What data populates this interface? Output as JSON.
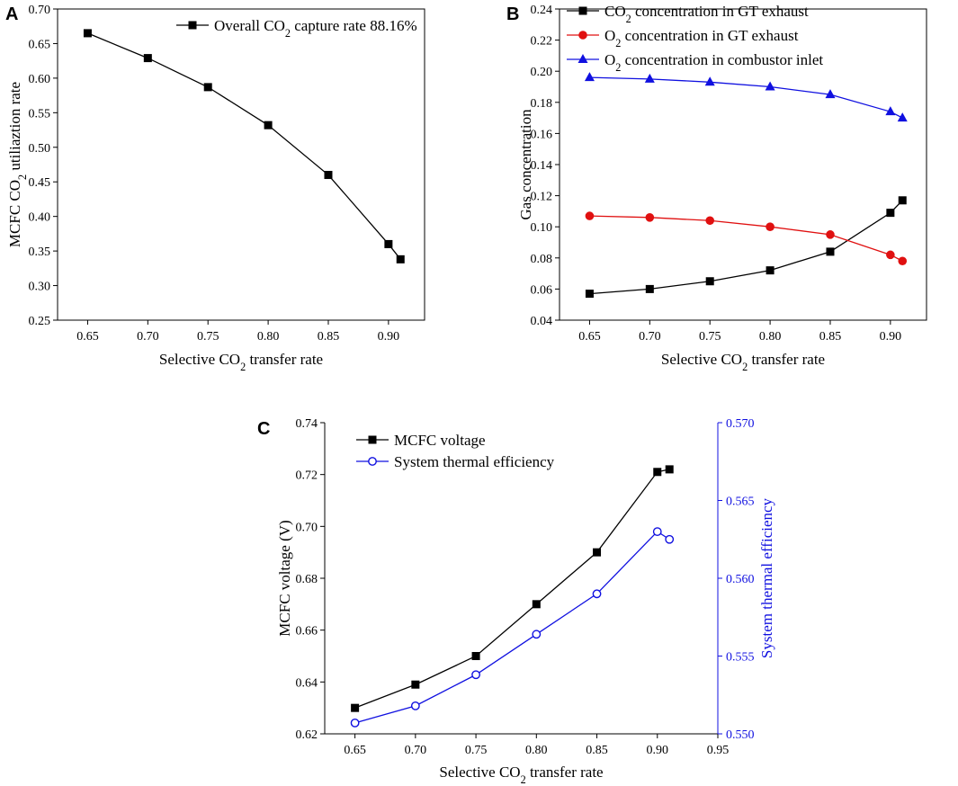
{
  "chart_data": [
    {
      "panel": "A",
      "type": "line",
      "xlabel": "Selective CO₂ transfer rate",
      "ylabel": "MCFC CO₂ utiliaztion rate",
      "xticks": [
        0.65,
        0.7,
        0.75,
        0.8,
        0.85,
        0.9
      ],
      "xtick_labels": [
        "0.65",
        "0.70",
        "0.75",
        "0.80",
        "0.85",
        "0.90"
      ],
      "xlim": [
        0.625,
        0.93
      ],
      "ylim": [
        0.25,
        0.7
      ],
      "yticks": [
        0.25,
        0.3,
        0.35,
        0.4,
        0.45,
        0.5,
        0.55,
        0.6,
        0.65,
        0.7
      ],
      "ytick_labels": [
        "0.25",
        "0.30",
        "0.35",
        "0.40",
        "0.45",
        "0.50",
        "0.55",
        "0.60",
        "0.65",
        "0.70"
      ],
      "legend_position": "top-right",
      "series": [
        {
          "name": "Overall CO₂ capture rate 88.16%",
          "color": "#000000",
          "marker": "square",
          "x": [
            0.65,
            0.7,
            0.75,
            0.8,
            0.85,
            0.9,
            0.91
          ],
          "y": [
            0.665,
            0.629,
            0.587,
            0.532,
            0.46,
            0.36,
            0.338
          ]
        }
      ]
    },
    {
      "panel": "B",
      "type": "line",
      "xlabel": "Selective CO₂ transfer rate",
      "ylabel": "Gas concentration",
      "xticks": [
        0.65,
        0.7,
        0.75,
        0.8,
        0.85,
        0.9
      ],
      "xtick_labels": [
        "0.65",
        "0.70",
        "0.75",
        "0.80",
        "0.85",
        "0.90"
      ],
      "xlim": [
        0.625,
        0.93
      ],
      "ylim": [
        0.04,
        0.24
      ],
      "yticks": [
        0.04,
        0.06,
        0.08,
        0.1,
        0.12,
        0.14,
        0.16,
        0.18,
        0.2,
        0.22,
        0.24
      ],
      "ytick_labels": [
        "0.04",
        "0.06",
        "0.08",
        "0.10",
        "0.12",
        "0.14",
        "0.16",
        "0.18",
        "0.20",
        "0.22",
        "0.24"
      ],
      "legend_position": "top-left",
      "series": [
        {
          "name": "CO₂ concentration in GT exhaust",
          "color": "#000000",
          "marker": "square",
          "x": [
            0.65,
            0.7,
            0.75,
            0.8,
            0.85,
            0.9,
            0.91
          ],
          "y": [
            0.057,
            0.06,
            0.065,
            0.072,
            0.084,
            0.109,
            0.117
          ]
        },
        {
          "name": "O₂ concentration in GT exhaust",
          "color": "#e01010",
          "marker": "circle",
          "x": [
            0.65,
            0.7,
            0.75,
            0.8,
            0.85,
            0.9,
            0.91
          ],
          "y": [
            0.107,
            0.106,
            0.104,
            0.1,
            0.095,
            0.082,
            0.078
          ]
        },
        {
          "name": "O₂ concentration in combustor inlet",
          "color": "#1010e0",
          "marker": "triangle",
          "x": [
            0.65,
            0.7,
            0.75,
            0.8,
            0.85,
            0.9,
            0.91
          ],
          "y": [
            0.196,
            0.195,
            0.193,
            0.19,
            0.185,
            0.174,
            0.17
          ]
        }
      ]
    },
    {
      "panel": "C",
      "type": "line",
      "xlabel": "Selective CO₂ transfer rate",
      "ylabel": "MCFC voltage (V)",
      "y2label": "System thermal efficiency",
      "xticks": [
        0.65,
        0.7,
        0.75,
        0.8,
        0.85,
        0.9,
        0.95
      ],
      "xtick_labels": [
        "0.65",
        "0.70",
        "0.75",
        "0.80",
        "0.85",
        "0.90",
        "0.95"
      ],
      "xlim": [
        0.625,
        0.95
      ],
      "ylim": [
        0.62,
        0.74
      ],
      "yticks": [
        0.62,
        0.64,
        0.66,
        0.68,
        0.7,
        0.72,
        0.74
      ],
      "ytick_labels": [
        "0.62",
        "0.64",
        "0.66",
        "0.68",
        "0.70",
        "0.72",
        "0.74"
      ],
      "y2lim": [
        0.55,
        0.57
      ],
      "y2ticks": [
        0.55,
        0.555,
        0.56,
        0.565,
        0.57
      ],
      "y2tick_labels": [
        "0.550",
        "0.555",
        "0.560",
        "0.565",
        "0.570"
      ],
      "legend_position": "top-left",
      "series": [
        {
          "name": "MCFC voltage",
          "color": "#000000",
          "marker": "square",
          "axis": "left",
          "x": [
            0.65,
            0.7,
            0.75,
            0.8,
            0.85,
            0.9,
            0.91
          ],
          "y": [
            0.63,
            0.639,
            0.65,
            0.67,
            0.69,
            0.721,
            0.722
          ]
        },
        {
          "name": "System thermal efficiency",
          "color": "#1010e0",
          "marker": "open-circle",
          "axis": "right",
          "x": [
            0.65,
            0.7,
            0.75,
            0.8,
            0.85,
            0.9,
            0.91
          ],
          "y": [
            0.5507,
            0.5518,
            0.5538,
            0.5564,
            0.559,
            0.563,
            0.5625
          ]
        }
      ]
    }
  ]
}
